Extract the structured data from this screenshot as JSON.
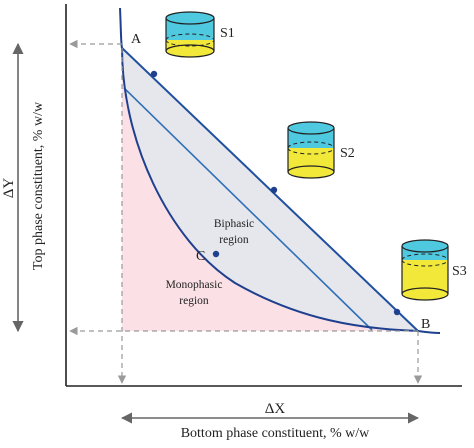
{
  "diagram": {
    "axes": {
      "x_title": "Bottom phase constituent, % w/w",
      "y_title": "Top phase constituent, % w/w",
      "x_delta": "ΔX",
      "y_delta": "ΔY"
    },
    "points": {
      "a": "A",
      "b": "B",
      "c": "C"
    },
    "regions": {
      "biphasic": [
        "Biphasic",
        "region"
      ],
      "monophasic": [
        "Monophasic",
        "region"
      ]
    },
    "systems": [
      "S1",
      "S2",
      "S3"
    ],
    "colors": {
      "binodal": "#1f3f8f",
      "tie_line": "#2f6fb8",
      "biphasic_fill": "#e6e7ec",
      "monophasic_fill": "#fbe1e6",
      "top_phase": "#4ec9e0",
      "bottom_phase": "#f1e83a",
      "axis": "#222222",
      "guide": "#9a9a9a"
    }
  }
}
